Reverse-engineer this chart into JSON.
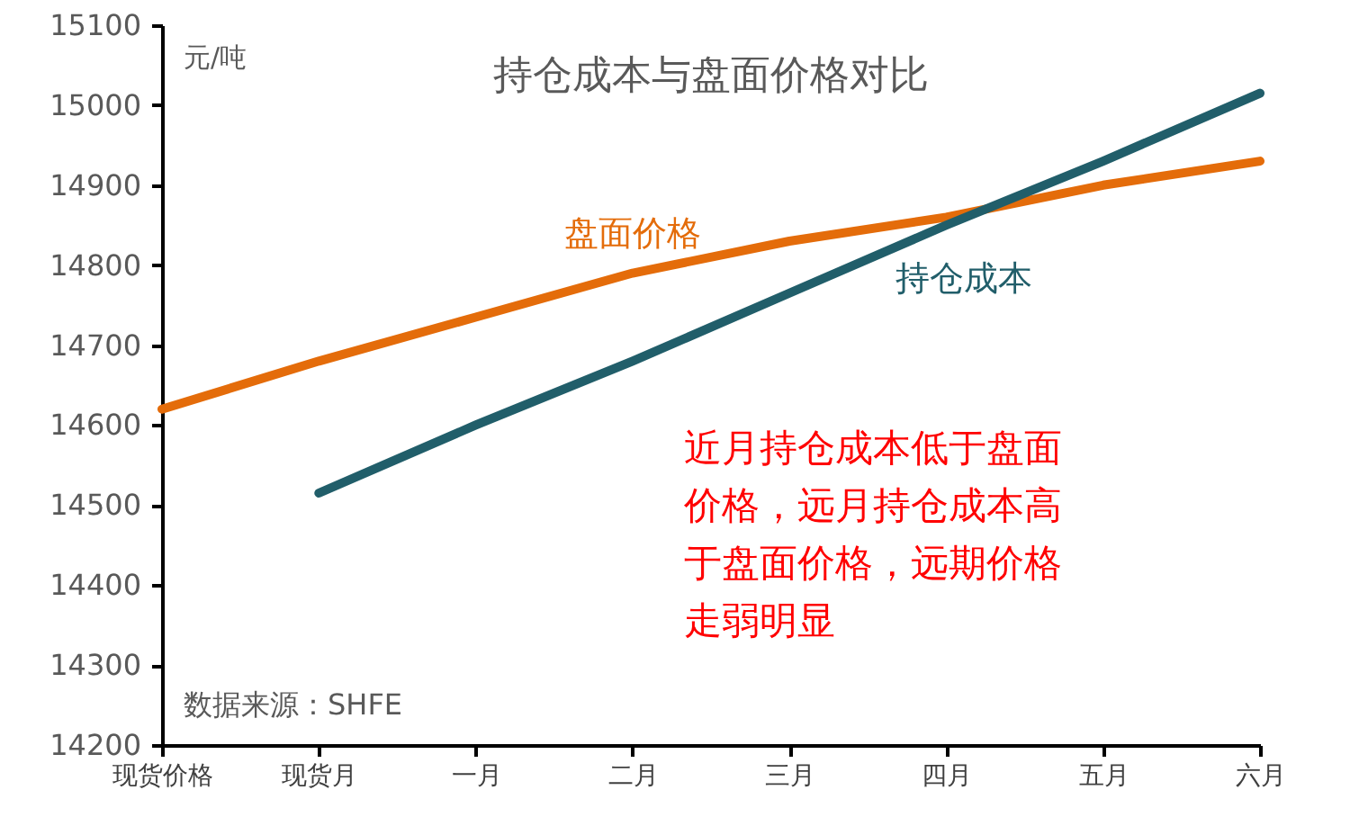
{
  "chart_data": {
    "type": "line",
    "title": "持仓成本与盘面价格对比",
    "ylabel": "元/吨",
    "categories": [
      "现货价格",
      "现货月",
      "一月",
      "二月",
      "三月",
      "四月",
      "五月",
      "六月"
    ],
    "series": [
      {
        "name": "盘面价格",
        "color": "#e46c0a",
        "values": [
          14620,
          14680,
          14735,
          14790,
          14830,
          14860,
          14900,
          14930
        ]
      },
      {
        "name": "持仓成本",
        "color": "#215e6a",
        "values": [
          null,
          14515,
          14600,
          14680,
          14765,
          14850,
          14930,
          15015
        ]
      }
    ],
    "ylim": [
      14200,
      15100
    ],
    "yticks": [
      14200,
      14300,
      14400,
      14500,
      14600,
      14700,
      14800,
      14900,
      15000,
      15100
    ],
    "grid": false,
    "marker": "none",
    "line_style": "solid",
    "annotations": [
      "近月持仓成本低于盘面价格，远月持仓成本高于盘面价格，远期价格走弱明显",
      "数据来源：SHFE"
    ]
  }
}
